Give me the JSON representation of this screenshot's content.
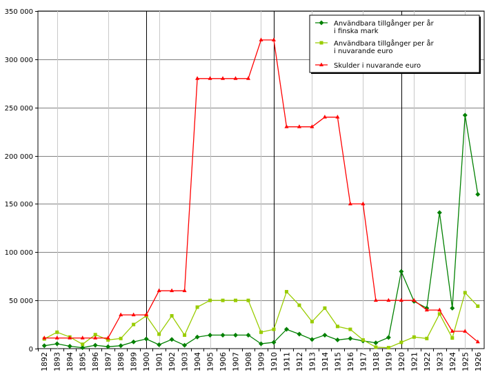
{
  "chart_data": {
    "type": "line",
    "title": "",
    "xlabel": "",
    "ylabel": "",
    "ylim": [
      0,
      350000
    ],
    "yticks": [
      0,
      50000,
      100000,
      150000,
      200000,
      250000,
      300000,
      350000
    ],
    "ytick_labels": [
      "0",
      "50 000",
      "100 000",
      "150 000",
      "200 000",
      "250 000",
      "300 000",
      "350 000"
    ],
    "grid": true,
    "legend_position": "top-right",
    "categories": [
      "1892",
      "1893",
      "1894",
      "1895",
      "1896",
      "1897",
      "1898",
      "1899",
      "1900",
      "1901",
      "1902",
      "1903",
      "1904",
      "1905",
      "1906",
      "1907",
      "1908",
      "1909",
      "1910",
      "1911",
      "1912",
      "1913",
      "1914",
      "1915",
      "1916",
      "1917",
      "1918",
      "1919",
      "1920",
      "1921",
      "1922",
      "1923",
      "1924",
      "1925",
      "1926"
    ],
    "series": [
      {
        "name": "Användbara tillgånger per år i finska mark",
        "legend_lines": [
          "Användbara tillgånger per år",
          "i finska mark"
        ],
        "color": "#008000",
        "marker": "diamond",
        "values": [
          3000,
          5000,
          2500,
          1000,
          3500,
          2000,
          3000,
          7000,
          10000,
          4000,
          9500,
          3500,
          12000,
          14000,
          14000,
          14000,
          14000,
          5000,
          6500,
          20000,
          15000,
          9500,
          14000,
          9000,
          10500,
          8000,
          6000,
          11500,
          80000,
          49000,
          42000,
          141000,
          42000,
          242000,
          160000
        ]
      },
      {
        "name": "Användbara tillgånger per år i nuvarande euro",
        "legend_lines": [
          "Användbara tillgånger per år",
          "i nuvarande euro"
        ],
        "color": "#99cc00",
        "marker": "square",
        "values": [
          10000,
          17000,
          12000,
          4500,
          14500,
          9000,
          10500,
          25000,
          34000,
          15000,
          34000,
          14000,
          43000,
          50000,
          50000,
          50000,
          50000,
          17000,
          20000,
          59000,
          45000,
          28000,
          42000,
          23000,
          20000,
          9000,
          1500,
          1000,
          6500,
          12000,
          10500,
          36000,
          11000,
          58000,
          44000
        ]
      },
      {
        "name": "Skulder i nuvarande euro",
        "legend_lines": [
          "Skulder i nuvarande euro"
        ],
        "color": "#ff0000",
        "marker": "triangle",
        "values": [
          11000,
          11000,
          11000,
          11000,
          11000,
          11000,
          35000,
          35000,
          35000,
          60000,
          60000,
          60000,
          280000,
          280000,
          280000,
          280000,
          280000,
          320000,
          320000,
          230000,
          230000,
          230000,
          240000,
          240000,
          150000,
          150000,
          50000,
          50000,
          50000,
          50000,
          40000,
          40000,
          18000,
          18000,
          7000
        ]
      }
    ]
  }
}
